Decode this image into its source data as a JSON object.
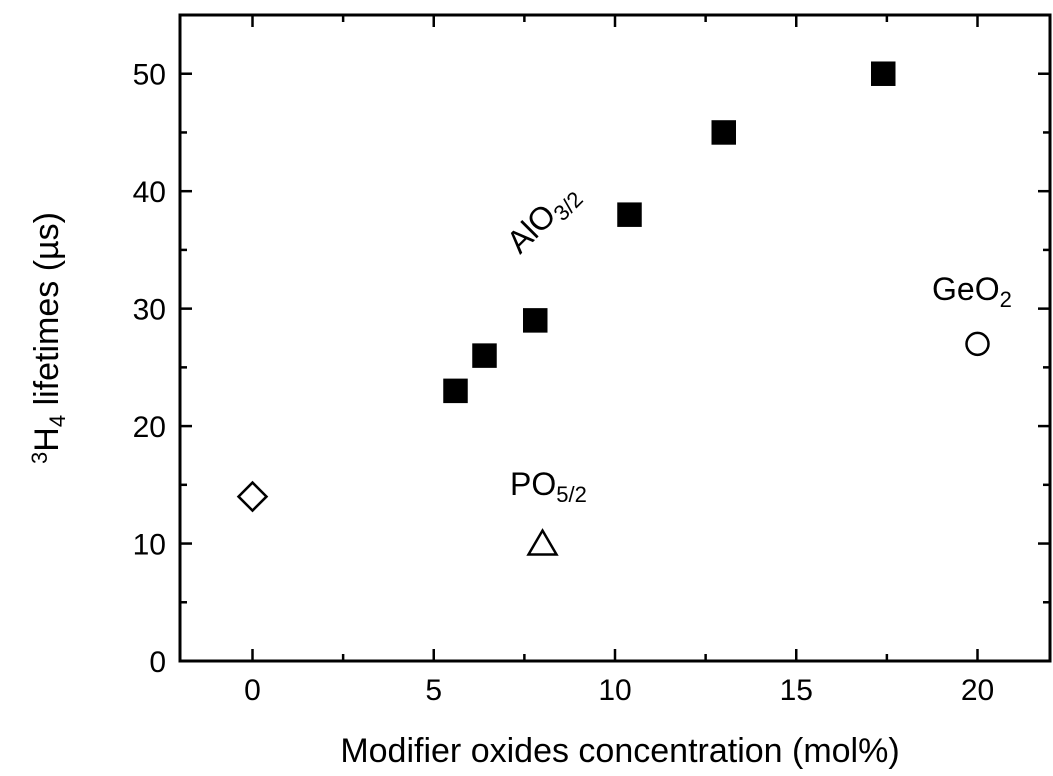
{
  "chart_data": {
    "type": "scatter",
    "xlabel": "Modifier oxides concentration (mol%)",
    "ylabel": {
      "sup": "3",
      "main": "H",
      "sub": "4",
      "rest": " lifetimes (µs)"
    },
    "xlim": [
      -2,
      22
    ],
    "ylim": [
      0,
      55
    ],
    "xticks": [
      0,
      5,
      10,
      15,
      20
    ],
    "yticks": [
      0,
      10,
      20,
      30,
      40,
      50
    ],
    "xminorticks": [
      2.5,
      7.5,
      12.5,
      17.5
    ],
    "yminorticks": [
      5,
      15,
      25,
      35,
      45
    ],
    "series": [
      {
        "name": "AlO",
        "name_sub": "3/2",
        "marker": "square",
        "filled": true,
        "color": "#000000",
        "x": [
          5.6,
          6.4,
          7.8,
          10.4,
          13,
          17.4
        ],
        "values": [
          23,
          26,
          29,
          38,
          45,
          50
        ]
      },
      {
        "marker": "diamond",
        "filled": false,
        "color": "#000000",
        "x": [
          0
        ],
        "values": [
          14
        ]
      },
      {
        "name": "PO",
        "name_sub": "5/2",
        "marker": "triangle",
        "filled": false,
        "color": "#000000",
        "x": [
          8
        ],
        "values": [
          10
        ]
      },
      {
        "name": "GeO",
        "name_sub": "2",
        "marker": "circle",
        "filled": false,
        "color": "#000000",
        "x": [
          20
        ],
        "values": [
          27
        ]
      }
    ]
  }
}
